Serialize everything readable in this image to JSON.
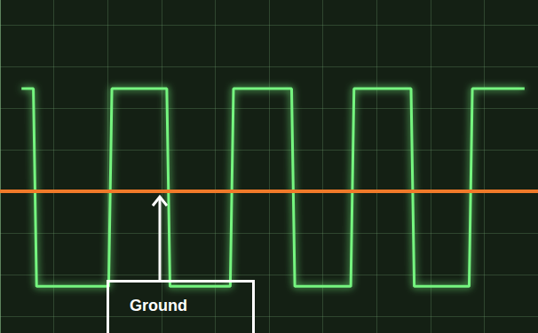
{
  "chart_data": {
    "type": "line",
    "x": [
      0.4,
      0.62,
      0.68,
      2.02,
      2.08,
      3.1,
      3.16,
      4.28,
      4.34,
      5.42,
      5.48,
      6.52,
      6.58,
      7.64,
      7.7,
      8.72,
      8.78,
      9.75
    ],
    "values": [
      2.47,
      2.47,
      -2.28,
      -2.28,
      2.47,
      2.47,
      -2.28,
      -2.28,
      2.47,
      2.47,
      -2.28,
      -2.28,
      2.47,
      2.47,
      -2.28,
      -2.28,
      2.47,
      2.47
    ],
    "color": "#74f57f",
    "xlim": [
      0,
      10
    ],
    "xticks": [
      0,
      1,
      2,
      3,
      4,
      5,
      6,
      7,
      8,
      9,
      10
    ],
    "ylim": [
      -3.4,
      4.6
    ],
    "yticks": [
      -3,
      -2,
      -1,
      0,
      1,
      2,
      3,
      4
    ],
    "grid": true,
    "tick_labels": false,
    "reference_line": 0,
    "annotation": "Ground"
  }
}
